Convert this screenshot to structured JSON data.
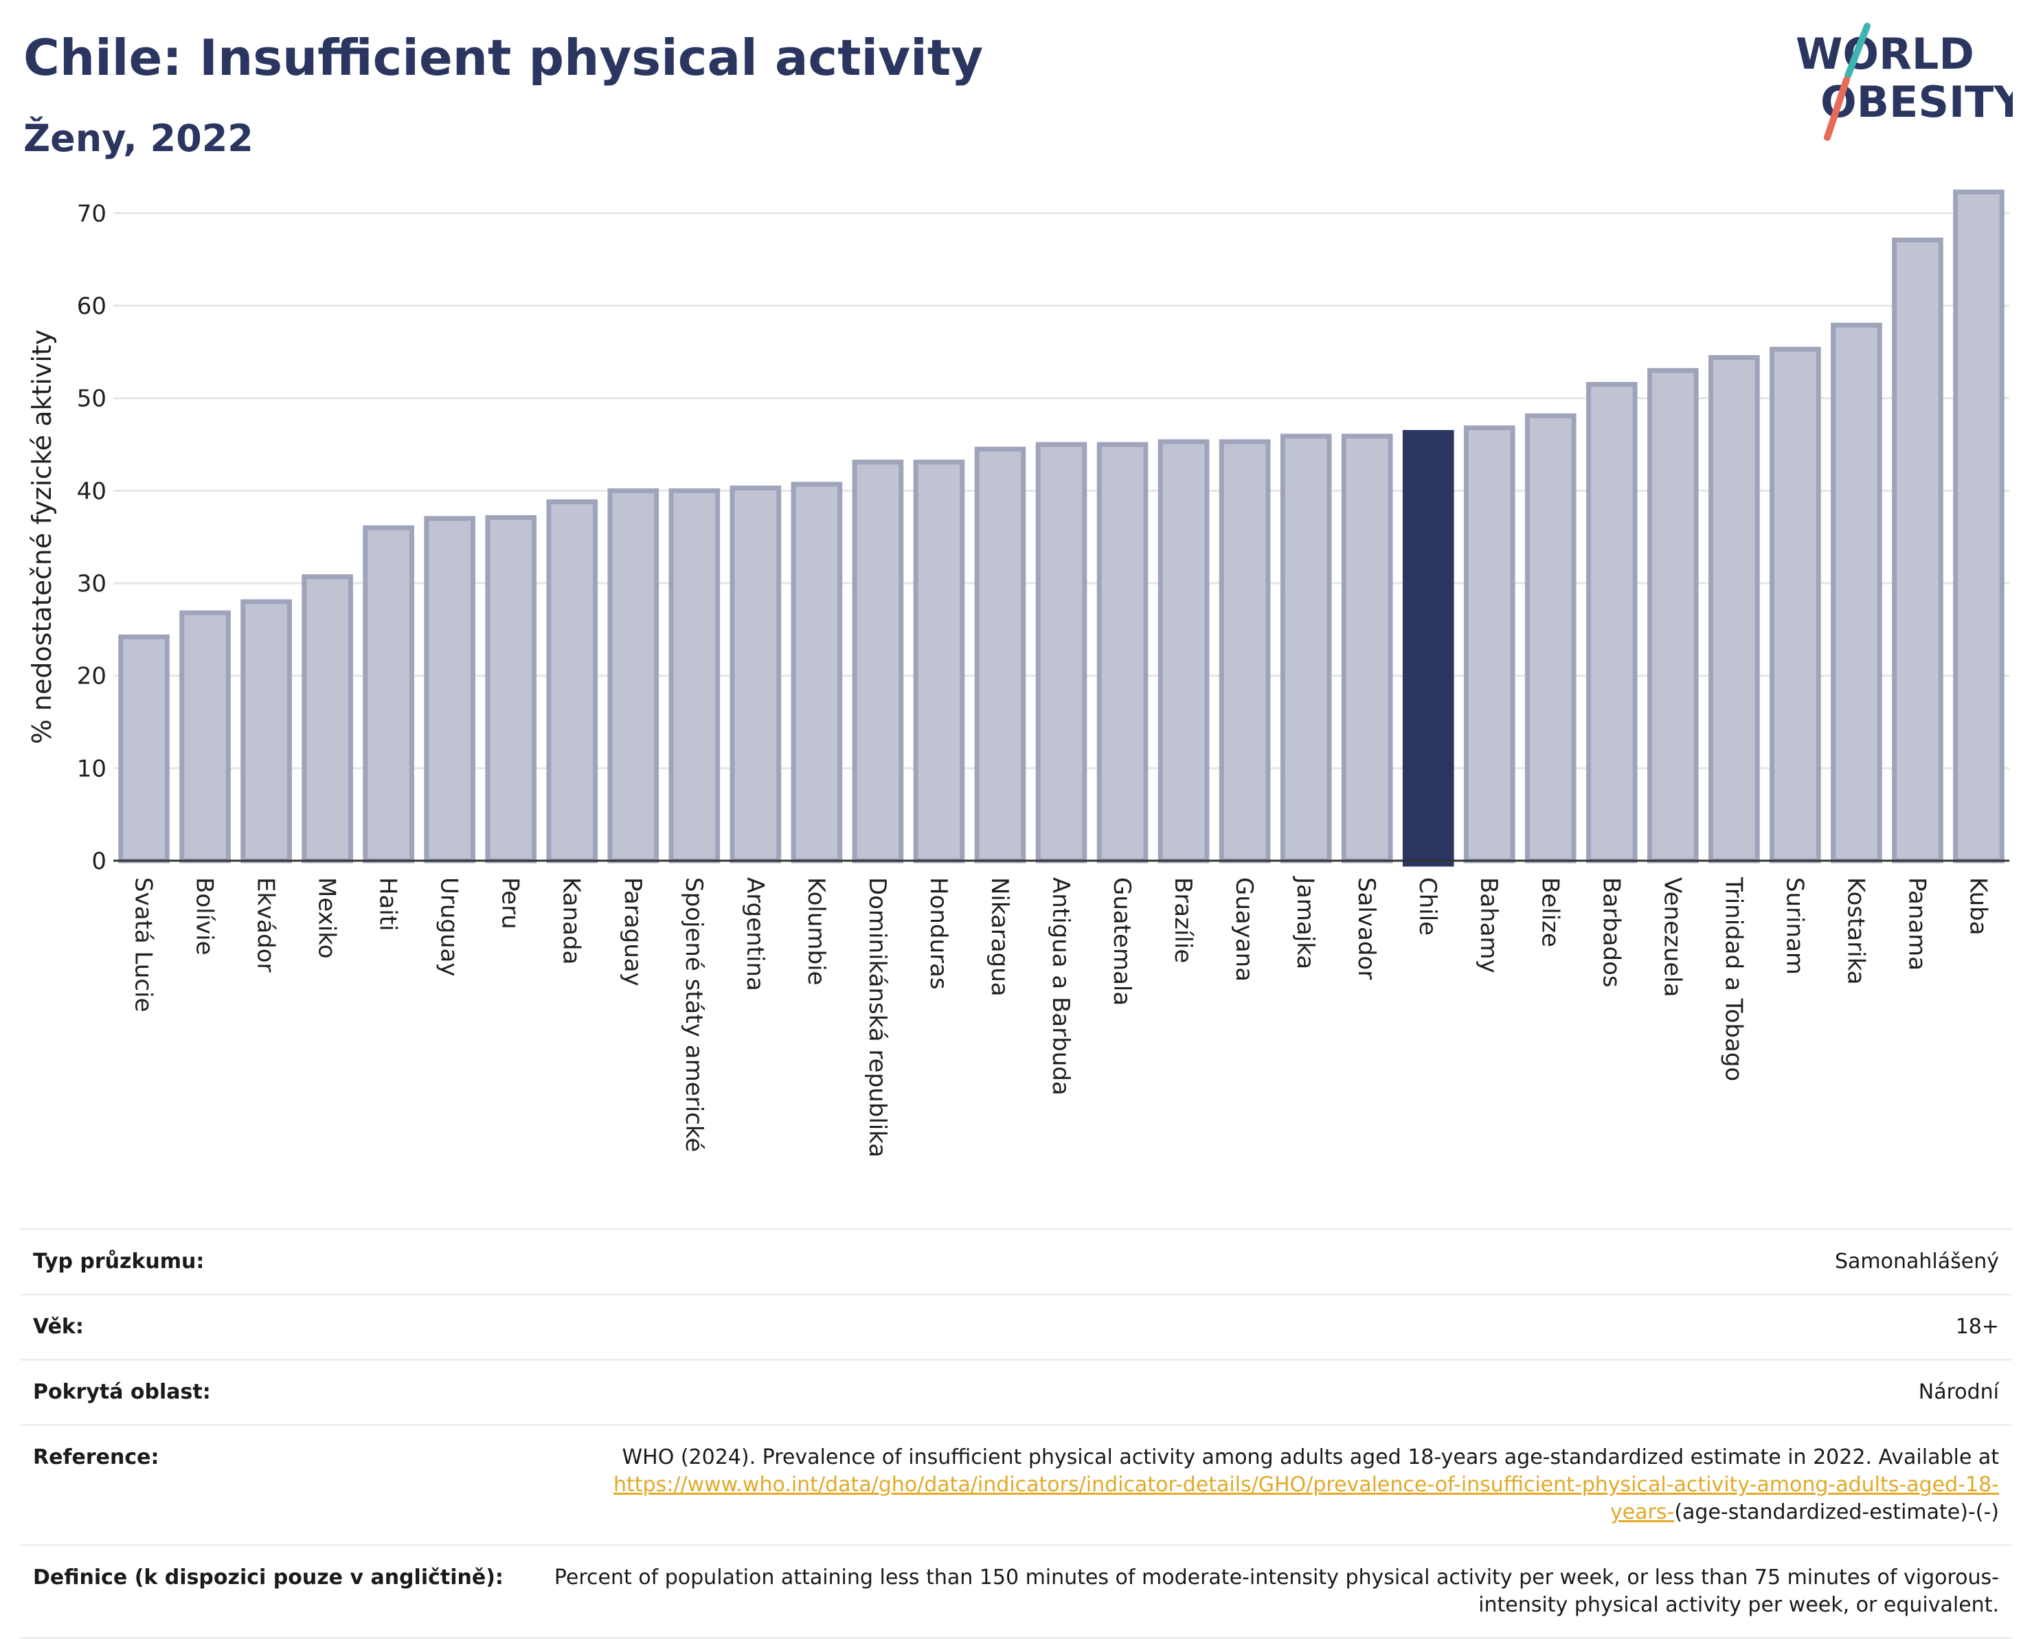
{
  "header": {
    "title": "Chile: Insufficient physical activity",
    "subtitle": "Ženy, 2022"
  },
  "logo": {
    "line1": "WORLD",
    "line2": "OBESITY",
    "colors": {
      "text": "#2b3660",
      "slash_teal": "#3fb3b0",
      "slash_coral": "#e86a5a"
    }
  },
  "chart_data": {
    "type": "bar",
    "ylabel": "% nedostatečné fyzické aktivity",
    "ylim": [
      0,
      73
    ],
    "yticks": [
      0,
      10,
      20,
      30,
      40,
      50,
      60,
      70
    ],
    "grid": true,
    "highlight": "Chile",
    "colors": {
      "bar": "#c0c3d2",
      "bar_border": "#9fa4bb",
      "highlight": "#2b3660",
      "grid": "#e6e6e6"
    },
    "categories": [
      "Svatá Lucie",
      "Bolívie",
      "Ekvádor",
      "Mexiko",
      "Haiti",
      "Uruguay",
      "Peru",
      "Kanada",
      "Paraguay",
      "Spojené státy americké",
      "Argentina",
      "Kolumbie",
      "Dominikánská republika",
      "Honduras",
      "Nikaragua",
      "Antigua a Barbuda",
      "Guatemala",
      "Brazílie",
      "Guayana",
      "Jamajka",
      "Salvador",
      "Chile",
      "Bahamy",
      "Belize",
      "Barbados",
      "Venezuela",
      "Trinidad a Tobago",
      "Surinam",
      "Kostarika",
      "Panama",
      "Kuba"
    ],
    "values": [
      24.2,
      26.8,
      28.0,
      30.7,
      36.0,
      37.0,
      37.1,
      38.8,
      40.0,
      40.0,
      40.3,
      40.7,
      43.1,
      43.1,
      44.5,
      45.0,
      45.0,
      45.3,
      45.3,
      45.9,
      45.9,
      46.3,
      46.8,
      48.1,
      51.5,
      53.0,
      54.4,
      55.3,
      57.9,
      67.1,
      72.3
    ]
  },
  "info": {
    "rows": [
      {
        "label": "Typ průzkumu:",
        "value": "Samonahlášený"
      },
      {
        "label": "Věk:",
        "value": "18+"
      },
      {
        "label": "Pokrytá oblast:",
        "value": "Národní"
      },
      {
        "label": "Reference:",
        "value_pre": "WHO (2024). Prevalence of insufficient physical activity among adults aged 18-years age-standardized estimate in 2022. Available at",
        "link": "https://www.who.int/data/gho/data/indicators/indicator-details/GHO/prevalence-of-insufficient-physical-activity-among-adults-aged-18-years-",
        "value_post": "(age-standardized-estimate)-(-)"
      },
      {
        "label": "Definice (k dispozici pouze v angličtině):",
        "value": "Percent of population attaining less than 150 minutes of moderate-intensity physical activity per week, or less than 75 minutes of vigorous-intensity physical activity per week, or equivalent."
      }
    ]
  }
}
